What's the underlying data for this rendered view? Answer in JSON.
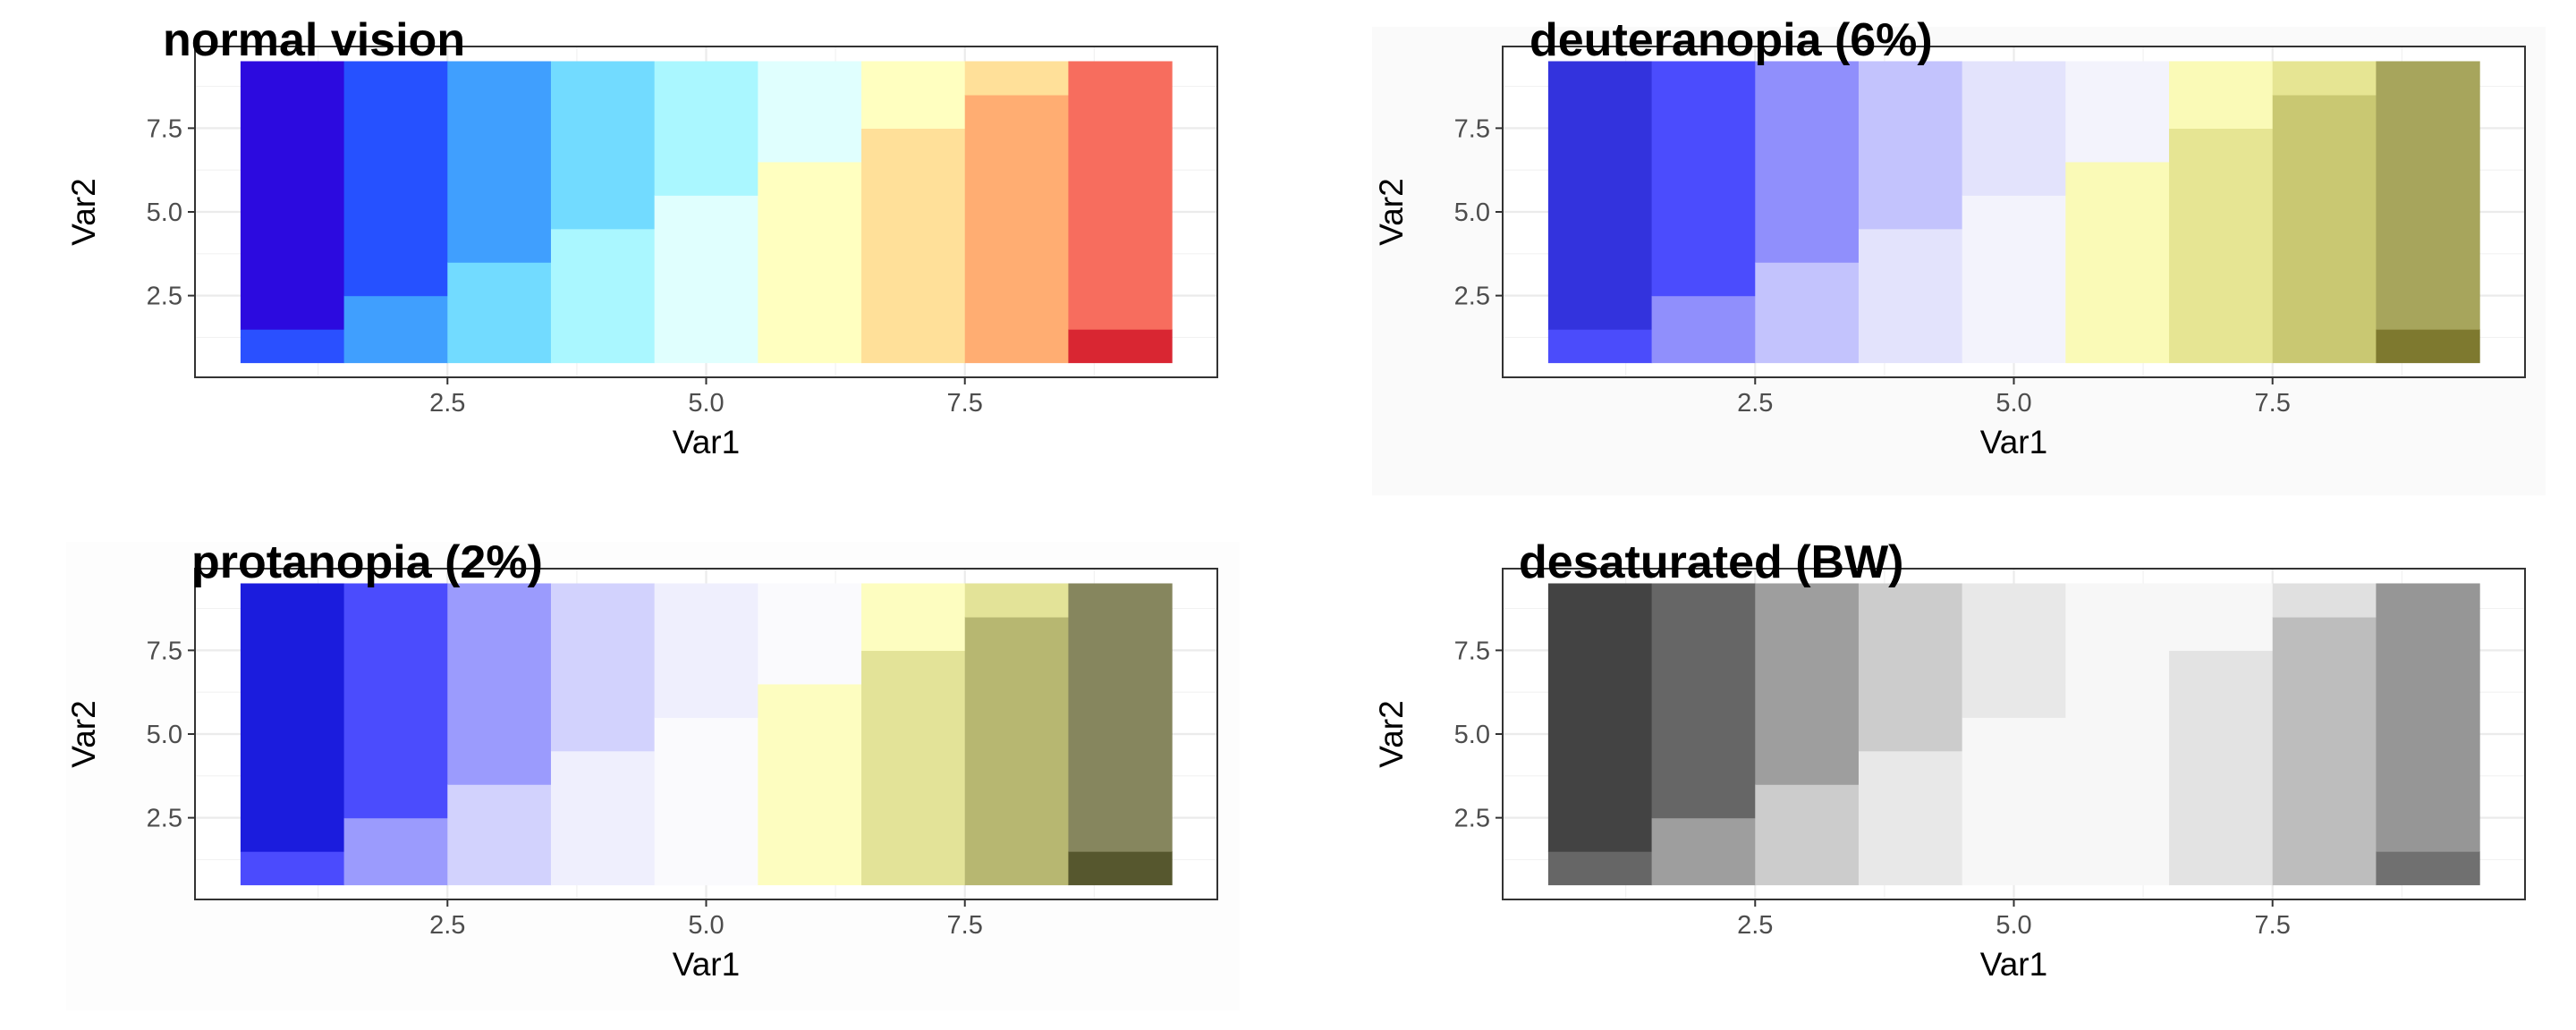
{
  "chart_data": [
    {
      "type": "heatmap",
      "title": "normal vision",
      "xlabel": "Var1",
      "ylabel": "Var2",
      "xlim": [
        0.06,
        9.94
      ],
      "ylim": [
        0.06,
        9.94
      ],
      "xticks": [
        "2.5",
        "5.0",
        "7.5"
      ],
      "yticks": [
        "2.5",
        "5.0",
        "7.5"
      ],
      "grid": true,
      "background": "#ffffff",
      "columns": [
        {
          "x": 1,
          "boundary": 1.5,
          "below": "#2a50ff",
          "above": "#2c0adf"
        },
        {
          "x": 2,
          "boundary": 2.5,
          "below": "#409ffe",
          "above": "#2651ff"
        },
        {
          "x": 3,
          "boundary": 3.5,
          "below": "#72dbff",
          "above": "#409ffe"
        },
        {
          "x": 4,
          "boundary": 4.5,
          "below": "#aaf7ff",
          "above": "#72dbff"
        },
        {
          "x": 5,
          "boundary": 5.5,
          "below": "#e0fffe",
          "above": "#aaf7ff"
        },
        {
          "x": 6,
          "boundary": 6.5,
          "below": "#ffffc0",
          "above": "#e0fffe"
        },
        {
          "x": 7,
          "boundary": 7.5,
          "below": "#ffe099",
          "above": "#ffffc0"
        },
        {
          "x": 8,
          "boundary": 8.5,
          "below": "#ffad72",
          "above": "#ffe099"
        },
        {
          "x": 9,
          "boundary": 1.5,
          "below": "#d92632",
          "above": "#f76d5e"
        }
      ]
    },
    {
      "type": "heatmap",
      "title": "deuteranopia (6%)",
      "xlabel": "Var1",
      "ylabel": "Var2",
      "xlim": [
        0.06,
        9.94
      ],
      "ylim": [
        0.06,
        9.94
      ],
      "xticks": [
        "2.5",
        "5.0",
        "7.5"
      ],
      "yticks": [
        "2.5",
        "5.0",
        "7.5"
      ],
      "grid": true,
      "background": "#fafafa",
      "columns": [
        {
          "x": 1,
          "boundary": 1.5,
          "below": "#4b4cfb",
          "above": "#3333dd"
        },
        {
          "x": 2,
          "boundary": 2.5,
          "below": "#908ffc",
          "above": "#4b4cfd"
        },
        {
          "x": 3,
          "boundary": 3.5,
          "below": "#c3c3fd",
          "above": "#908ffc"
        },
        {
          "x": 4,
          "boundary": 4.5,
          "below": "#e3e3fc",
          "above": "#c3c3fd"
        },
        {
          "x": 5,
          "boundary": 5.5,
          "below": "#f3f3fc",
          "above": "#e3e3fc"
        },
        {
          "x": 6,
          "boundary": 6.5,
          "below": "#fafab7",
          "above": "#f3f3fc"
        },
        {
          "x": 7,
          "boundary": 7.5,
          "below": "#e6e593",
          "above": "#fafab7"
        },
        {
          "x": 8,
          "boundary": 8.5,
          "below": "#c9c872",
          "above": "#e6e593"
        },
        {
          "x": 9,
          "boundary": 1.5,
          "below": "#7e792f",
          "above": "#a7a55c"
        }
      ]
    },
    {
      "type": "heatmap",
      "title": "protanopia (2%)",
      "xlabel": "Var1",
      "ylabel": "Var2",
      "xlim": [
        0.06,
        9.94
      ],
      "ylim": [
        0.06,
        9.94
      ],
      "xticks": [
        "2.5",
        "5.0",
        "7.5"
      ],
      "yticks": [
        "2.5",
        "5.0",
        "7.5"
      ],
      "grid": true,
      "background": "#fdfdfd",
      "columns": [
        {
          "x": 1,
          "boundary": 1.5,
          "below": "#4b4bfd",
          "above": "#1b1cdd"
        },
        {
          "x": 2,
          "boundary": 2.5,
          "below": "#9b9bfd",
          "above": "#4b4cfd"
        },
        {
          "x": 3,
          "boundary": 3.5,
          "below": "#d2d2fd",
          "above": "#9b9bfd"
        },
        {
          "x": 4,
          "boundary": 4.5,
          "below": "#efeffd",
          "above": "#d2d2fd"
        },
        {
          "x": 5,
          "boundary": 5.5,
          "below": "#fafafd",
          "above": "#efeffd"
        },
        {
          "x": 6,
          "boundary": 6.5,
          "below": "#fdfdc0",
          "above": "#fafafd"
        },
        {
          "x": 7,
          "boundary": 7.5,
          "below": "#e3e398",
          "above": "#fdfdc0"
        },
        {
          "x": 8,
          "boundary": 8.5,
          "below": "#b7b771",
          "above": "#e3e398"
        },
        {
          "x": 9,
          "boundary": 1.5,
          "below": "#56572e",
          "above": "#86865e"
        }
      ]
    },
    {
      "type": "heatmap",
      "title": "desaturated (BW)",
      "xlabel": "Var1",
      "ylabel": "Var2",
      "xlim": [
        0.06,
        9.94
      ],
      "ylim": [
        0.06,
        9.94
      ],
      "xticks": [
        "2.5",
        "5.0",
        "7.5"
      ],
      "yticks": [
        "2.5",
        "5.0",
        "7.5"
      ],
      "grid": true,
      "background": "#ffffff",
      "columns": [
        {
          "x": 1,
          "boundary": 1.5,
          "below": "#666666",
          "above": "#434343"
        },
        {
          "x": 2,
          "boundary": 2.5,
          "below": "#9e9e9e",
          "above": "#666666"
        },
        {
          "x": 3,
          "boundary": 3.5,
          "below": "#cccccc",
          "above": "#9e9e9e"
        },
        {
          "x": 4,
          "boundary": 4.5,
          "below": "#e8e8e8",
          "above": "#cccccc"
        },
        {
          "x": 5,
          "boundary": 5.5,
          "below": "#f7f7f7",
          "above": "#e8e8e8"
        },
        {
          "x": 6,
          "boundary": 6.5,
          "below": "#f7f7f7",
          "above": "#f7f7f7"
        },
        {
          "x": 7,
          "boundary": 7.5,
          "below": "#e3e3e3",
          "above": "#f7f7f7"
        },
        {
          "x": 8,
          "boundary": 8.5,
          "below": "#bdbdbd",
          "above": "#e0e0e0"
        },
        {
          "x": 9,
          "boundary": 1.5,
          "below": "#707070",
          "above": "#969696"
        }
      ]
    }
  ]
}
